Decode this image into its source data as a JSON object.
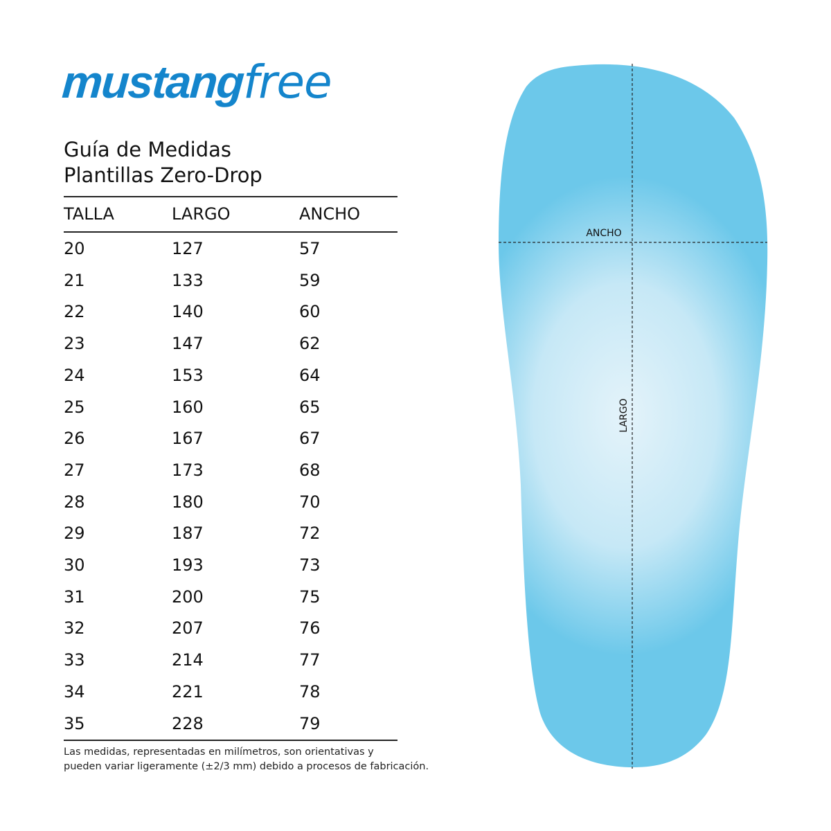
{
  "brand": {
    "bold": "mustang",
    "light": "free",
    "color": "#1485cc"
  },
  "title": {
    "line1": "Guía de Medidas",
    "line2": "Plantillas Zero-Drop"
  },
  "table": {
    "headers": [
      "TALLA",
      "LARGO",
      "ANCHO"
    ],
    "rows": [
      [
        "20",
        "127",
        "57"
      ],
      [
        "21",
        "133",
        "59"
      ],
      [
        "22",
        "140",
        "60"
      ],
      [
        "23",
        "147",
        "62"
      ],
      [
        "24",
        "153",
        "64"
      ],
      [
        "25",
        "160",
        "65"
      ],
      [
        "26",
        "167",
        "67"
      ],
      [
        "27",
        "173",
        "68"
      ],
      [
        "28",
        "180",
        "70"
      ],
      [
        "29",
        "187",
        "72"
      ],
      [
        "30",
        "193",
        "73"
      ],
      [
        "31",
        "200",
        "75"
      ],
      [
        "32",
        "207",
        "76"
      ],
      [
        "33",
        "214",
        "77"
      ],
      [
        "34",
        "221",
        "78"
      ],
      [
        "35",
        "228",
        "79"
      ]
    ]
  },
  "note": {
    "line1": "Las medidas, representadas en milímetros, son orientativas y",
    "line2": "pueden variar ligeramente (±2/3 mm) debido a procesos de fabricación."
  },
  "diagram": {
    "width_label": "ANCHO",
    "length_label": "LARGO",
    "insole_color": "#6cc8ea"
  }
}
